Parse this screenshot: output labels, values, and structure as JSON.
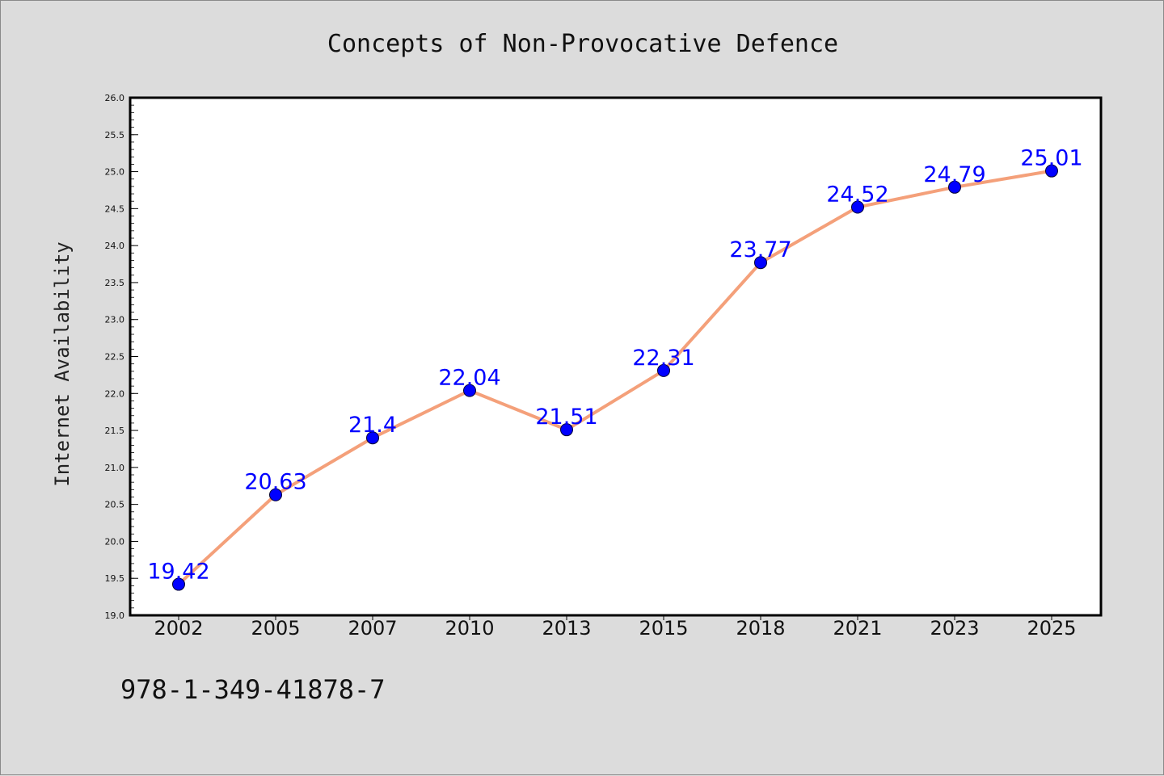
{
  "chart_data": {
    "type": "line",
    "title": "Concepts of Non-Provocative Defence",
    "xlabel": "",
    "ylabel": "Internet Availability",
    "categories": [
      "2002",
      "2005",
      "2007",
      "2010",
      "2013",
      "2015",
      "2018",
      "2021",
      "2023",
      "2025"
    ],
    "series": [
      {
        "values": [
          19.42,
          20.63,
          21.4,
          22.04,
          21.51,
          22.31,
          23.77,
          24.52,
          24.79,
          25.01
        ],
        "data_labels": [
          "19.42",
          "20.63",
          "21.4",
          "22.04",
          "21.51",
          "22.31",
          "23.77",
          "24.52",
          "24.79",
          "25.01"
        ],
        "line_color": "#f4a07a",
        "marker_color": "#0000ff"
      }
    ],
    "ylim": [
      19.0,
      26.0
    ],
    "yticks": [
      "19.0",
      "19.5",
      "20.0",
      "20.5",
      "21.0",
      "21.5",
      "22.0",
      "22.5",
      "23.0",
      "23.5",
      "24.0",
      "24.5",
      "25.0",
      "25.5",
      "26.0"
    ],
    "grid": false,
    "legend": "none"
  },
  "footer": {
    "isbn": "978-1-349-41878-7"
  },
  "colors": {
    "background": "#dcdcdc",
    "plot_background": "#ffffff",
    "label_color": "#0000ff"
  }
}
